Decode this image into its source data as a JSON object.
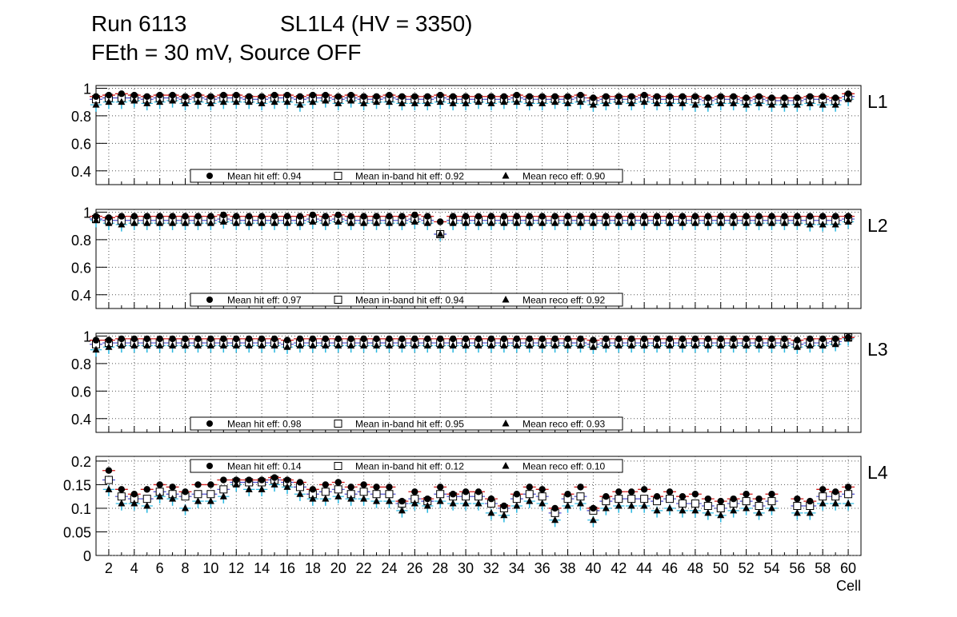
{
  "title": {
    "run": "Run 6113",
    "chamber": "SL1L4 (HV = 3350)",
    "conditions": "FEth = 30 mV, Source OFF"
  },
  "legend_labels": {
    "hit": "Mean hit  eff:",
    "inband": "Mean in-band hit eff:",
    "reco": "Mean reco eff:"
  },
  "x_axis": {
    "label": "Cell",
    "tick_labels": [
      "2",
      "4",
      "6",
      "8",
      "10",
      "12",
      "14",
      "16",
      "18",
      "20",
      "22",
      "24",
      "26",
      "28",
      "30",
      "32",
      "34",
      "36",
      "38",
      "40",
      "42",
      "44",
      "46",
      "48",
      "50",
      "52",
      "54",
      "56",
      "58",
      "60"
    ]
  },
  "chart_data": [
    {
      "type": "scatter",
      "layer": "L1",
      "xlabel": "",
      "ylabel": "",
      "xlim": [
        1,
        61
      ],
      "ylim": [
        0.3,
        1.02
      ],
      "yticks": [
        0.4,
        0.6,
        0.8,
        1
      ],
      "ytick_labels": [
        "0.4",
        "0.6",
        "0.8",
        "1"
      ],
      "grid": true,
      "legend_position": "bottom-center",
      "legend_values": {
        "hit": "0.94",
        "inband": "0.92",
        "reco": "0.90"
      },
      "x": [
        1,
        2,
        3,
        4,
        5,
        6,
        7,
        8,
        9,
        10,
        11,
        12,
        13,
        14,
        15,
        16,
        17,
        18,
        19,
        20,
        21,
        22,
        23,
        24,
        25,
        26,
        27,
        28,
        29,
        30,
        31,
        32,
        33,
        34,
        35,
        36,
        37,
        38,
        39,
        40,
        41,
        42,
        43,
        44,
        45,
        46,
        47,
        48,
        49,
        50,
        51,
        52,
        53,
        54,
        55,
        56,
        57,
        58,
        59,
        60
      ],
      "series": [
        {
          "name": "hit",
          "values": [
            0.94,
            0.95,
            0.96,
            0.95,
            0.94,
            0.95,
            0.95,
            0.94,
            0.95,
            0.94,
            0.95,
            0.95,
            0.94,
            0.94,
            0.95,
            0.95,
            0.94,
            0.95,
            0.95,
            0.94,
            0.95,
            0.94,
            0.94,
            0.95,
            0.94,
            0.94,
            0.94,
            0.95,
            0.94,
            0.94,
            0.94,
            0.94,
            0.94,
            0.95,
            0.94,
            0.94,
            0.94,
            0.94,
            0.95,
            0.93,
            0.94,
            0.94,
            0.94,
            0.95,
            0.94,
            0.94,
            0.94,
            0.94,
            0.93,
            0.94,
            0.94,
            0.93,
            0.94,
            0.93,
            0.93,
            0.93,
            0.94,
            0.94,
            0.93,
            0.96
          ]
        },
        {
          "name": "inband",
          "values": [
            0.92,
            0.93,
            0.93,
            0.93,
            0.92,
            0.93,
            0.93,
            0.92,
            0.93,
            0.92,
            0.93,
            0.93,
            0.92,
            0.92,
            0.93,
            0.93,
            0.92,
            0.93,
            0.93,
            0.92,
            0.93,
            0.92,
            0.92,
            0.93,
            0.92,
            0.92,
            0.92,
            0.93,
            0.92,
            0.92,
            0.92,
            0.92,
            0.92,
            0.93,
            0.92,
            0.92,
            0.92,
            0.92,
            0.93,
            0.91,
            0.92,
            0.92,
            0.92,
            0.93,
            0.92,
            0.92,
            0.92,
            0.92,
            0.91,
            0.92,
            0.92,
            0.91,
            0.92,
            0.91,
            0.91,
            0.91,
            0.92,
            0.92,
            0.91,
            0.94
          ]
        },
        {
          "name": "reco",
          "values": [
            0.88,
            0.9,
            0.9,
            0.91,
            0.89,
            0.9,
            0.91,
            0.89,
            0.9,
            0.89,
            0.9,
            0.9,
            0.9,
            0.89,
            0.9,
            0.9,
            0.88,
            0.9,
            0.91,
            0.89,
            0.91,
            0.89,
            0.9,
            0.9,
            0.89,
            0.89,
            0.89,
            0.9,
            0.89,
            0.89,
            0.9,
            0.89,
            0.9,
            0.9,
            0.89,
            0.89,
            0.9,
            0.89,
            0.9,
            0.88,
            0.89,
            0.9,
            0.89,
            0.9,
            0.89,
            0.89,
            0.89,
            0.88,
            0.88,
            0.89,
            0.89,
            0.88,
            0.89,
            0.88,
            0.88,
            0.88,
            0.89,
            0.88,
            0.88,
            0.92
          ]
        }
      ]
    },
    {
      "type": "scatter",
      "layer": "L2",
      "xlabel": "",
      "ylabel": "",
      "xlim": [
        1,
        61
      ],
      "ylim": [
        0.3,
        1.02
      ],
      "yticks": [
        0.4,
        0.6,
        0.8,
        1
      ],
      "ytick_labels": [
        "0.4",
        "0.6",
        "0.8",
        "1"
      ],
      "grid": true,
      "legend_position": "bottom-center",
      "legend_values": {
        "hit": "0.97",
        "inband": "0.94",
        "reco": "0.92"
      },
      "x": [
        1,
        2,
        3,
        4,
        5,
        6,
        7,
        8,
        9,
        10,
        11,
        12,
        13,
        14,
        15,
        16,
        17,
        18,
        19,
        20,
        21,
        22,
        23,
        24,
        25,
        26,
        27,
        28,
        29,
        30,
        31,
        32,
        33,
        34,
        35,
        36,
        37,
        38,
        39,
        40,
        41,
        42,
        43,
        44,
        45,
        46,
        47,
        48,
        49,
        50,
        51,
        52,
        53,
        54,
        55,
        56,
        57,
        58,
        59,
        60
      ],
      "series": [
        {
          "name": "hit",
          "values": [
            0.97,
            0.96,
            0.97,
            0.97,
            0.97,
            0.97,
            0.97,
            0.97,
            0.97,
            0.97,
            0.98,
            0.97,
            0.97,
            0.97,
            0.97,
            0.97,
            0.97,
            0.98,
            0.97,
            0.98,
            0.97,
            0.97,
            0.97,
            0.97,
            0.97,
            0.98,
            0.97,
            0.93,
            0.97,
            0.97,
            0.97,
            0.97,
            0.97,
            0.97,
            0.97,
            0.97,
            0.97,
            0.97,
            0.97,
            0.97,
            0.97,
            0.97,
            0.97,
            0.97,
            0.97,
            0.97,
            0.97,
            0.97,
            0.97,
            0.97,
            0.97,
            0.97,
            0.97,
            0.97,
            0.97,
            0.97,
            0.97,
            0.97,
            0.97,
            0.97
          ]
        },
        {
          "name": "inband",
          "values": [
            0.95,
            0.94,
            0.94,
            0.94,
            0.94,
            0.94,
            0.94,
            0.94,
            0.94,
            0.94,
            0.95,
            0.94,
            0.94,
            0.94,
            0.94,
            0.94,
            0.94,
            0.95,
            0.94,
            0.95,
            0.94,
            0.94,
            0.94,
            0.94,
            0.94,
            0.95,
            0.94,
            0.84,
            0.94,
            0.94,
            0.94,
            0.94,
            0.94,
            0.94,
            0.94,
            0.94,
            0.94,
            0.94,
            0.94,
            0.94,
            0.94,
            0.94,
            0.94,
            0.94,
            0.94,
            0.94,
            0.94,
            0.94,
            0.94,
            0.94,
            0.94,
            0.94,
            0.94,
            0.94,
            0.94,
            0.94,
            0.94,
            0.94,
            0.94,
            0.95
          ]
        },
        {
          "name": "reco",
          "values": [
            0.94,
            0.92,
            0.91,
            0.92,
            0.92,
            0.92,
            0.92,
            0.92,
            0.92,
            0.92,
            0.93,
            0.92,
            0.92,
            0.92,
            0.92,
            0.92,
            0.92,
            0.93,
            0.92,
            0.93,
            0.92,
            0.92,
            0.92,
            0.92,
            0.92,
            0.93,
            0.92,
            0.84,
            0.92,
            0.92,
            0.92,
            0.92,
            0.92,
            0.92,
            0.92,
            0.92,
            0.92,
            0.92,
            0.92,
            0.92,
            0.92,
            0.92,
            0.92,
            0.92,
            0.92,
            0.92,
            0.92,
            0.92,
            0.92,
            0.92,
            0.92,
            0.92,
            0.92,
            0.92,
            0.92,
            0.92,
            0.91,
            0.91,
            0.91,
            0.93
          ]
        }
      ]
    },
    {
      "type": "scatter",
      "layer": "L3",
      "xlabel": "",
      "ylabel": "",
      "xlim": [
        1,
        61
      ],
      "ylim": [
        0.3,
        1.02
      ],
      "yticks": [
        0.4,
        0.6,
        0.8,
        1
      ],
      "ytick_labels": [
        "0.4",
        "0.6",
        "0.8",
        "1"
      ],
      "grid": true,
      "legend_position": "bottom-center",
      "legend_values": {
        "hit": "0.98",
        "inband": "0.95",
        "reco": "0.93"
      },
      "x": [
        1,
        2,
        3,
        4,
        5,
        6,
        7,
        8,
        9,
        10,
        11,
        12,
        13,
        14,
        15,
        16,
        17,
        18,
        19,
        20,
        21,
        22,
        23,
        24,
        25,
        26,
        27,
        28,
        29,
        30,
        31,
        32,
        33,
        34,
        35,
        36,
        37,
        38,
        39,
        40,
        41,
        42,
        43,
        44,
        45,
        46,
        47,
        48,
        49,
        50,
        51,
        52,
        53,
        54,
        55,
        56,
        57,
        58,
        59,
        60
      ],
      "series": [
        {
          "name": "hit",
          "values": [
            0.97,
            0.97,
            0.98,
            0.98,
            0.98,
            0.98,
            0.98,
            0.98,
            0.98,
            0.98,
            0.98,
            0.98,
            0.98,
            0.98,
            0.98,
            0.97,
            0.98,
            0.98,
            0.98,
            0.98,
            0.98,
            0.98,
            0.98,
            0.98,
            0.98,
            0.98,
            0.98,
            0.98,
            0.98,
            0.98,
            0.98,
            0.98,
            0.98,
            0.98,
            0.98,
            0.98,
            0.98,
            0.98,
            0.98,
            0.97,
            0.98,
            0.98,
            0.98,
            0.98,
            0.98,
            0.98,
            0.98,
            0.98,
            0.98,
            0.98,
            0.98,
            0.98,
            0.98,
            0.98,
            0.98,
            0.97,
            0.98,
            0.98,
            0.98,
            0.99
          ]
        },
        {
          "name": "inband",
          "values": [
            0.94,
            0.95,
            0.95,
            0.95,
            0.95,
            0.95,
            0.95,
            0.95,
            0.95,
            0.95,
            0.95,
            0.95,
            0.95,
            0.95,
            0.95,
            0.94,
            0.95,
            0.95,
            0.95,
            0.95,
            0.95,
            0.95,
            0.95,
            0.95,
            0.95,
            0.95,
            0.95,
            0.95,
            0.95,
            0.95,
            0.95,
            0.95,
            0.95,
            0.95,
            0.95,
            0.95,
            0.95,
            0.95,
            0.95,
            0.94,
            0.95,
            0.95,
            0.95,
            0.95,
            0.95,
            0.95,
            0.95,
            0.95,
            0.95,
            0.95,
            0.95,
            0.95,
            0.95,
            0.95,
            0.95,
            0.94,
            0.95,
            0.95,
            0.96,
            0.99
          ]
        },
        {
          "name": "reco",
          "values": [
            0.9,
            0.92,
            0.93,
            0.93,
            0.93,
            0.93,
            0.93,
            0.93,
            0.93,
            0.93,
            0.93,
            0.93,
            0.93,
            0.93,
            0.93,
            0.92,
            0.93,
            0.93,
            0.93,
            0.93,
            0.93,
            0.93,
            0.93,
            0.93,
            0.93,
            0.93,
            0.93,
            0.93,
            0.93,
            0.93,
            0.93,
            0.93,
            0.93,
            0.93,
            0.93,
            0.93,
            0.93,
            0.93,
            0.93,
            0.92,
            0.93,
            0.93,
            0.93,
            0.93,
            0.93,
            0.93,
            0.93,
            0.93,
            0.93,
            0.93,
            0.93,
            0.93,
            0.93,
            0.93,
            0.93,
            0.92,
            0.93,
            0.93,
            0.94,
            0.98
          ]
        }
      ]
    },
    {
      "type": "scatter",
      "layer": "L4",
      "xlabel": "Cell",
      "ylabel": "",
      "xlim": [
        1,
        61
      ],
      "ylim": [
        0,
        0.21
      ],
      "yticks": [
        0,
        0.05,
        0.1,
        0.15,
        0.2
      ],
      "ytick_labels": [
        "0",
        "0.05",
        "0.1",
        "0.15",
        "0.2"
      ],
      "grid": true,
      "legend_position": "top-center",
      "legend_values": {
        "hit": "0.14",
        "inband": "0.12",
        "reco": "0.10"
      },
      "x": [
        2,
        3,
        4,
        5,
        6,
        7,
        8,
        9,
        10,
        11,
        12,
        13,
        14,
        15,
        16,
        17,
        18,
        19,
        20,
        21,
        22,
        23,
        24,
        25,
        26,
        27,
        28,
        29,
        30,
        31,
        32,
        33,
        34,
        35,
        36,
        37,
        38,
        39,
        40,
        41,
        42,
        43,
        44,
        45,
        46,
        47,
        48,
        49,
        50,
        51,
        52,
        53,
        54,
        56,
        57,
        58,
        59,
        60
      ],
      "series": [
        {
          "name": "hit",
          "values": [
            0.18,
            0.14,
            0.13,
            0.14,
            0.15,
            0.145,
            0.135,
            0.15,
            0.15,
            0.16,
            0.16,
            0.16,
            0.16,
            0.165,
            0.16,
            0.155,
            0.14,
            0.15,
            0.155,
            0.145,
            0.15,
            0.145,
            0.145,
            0.115,
            0.135,
            0.12,
            0.145,
            0.13,
            0.135,
            0.135,
            0.12,
            0.105,
            0.13,
            0.145,
            0.14,
            0.1,
            0.13,
            0.145,
            0.1,
            0.125,
            0.135,
            0.135,
            0.14,
            0.125,
            0.135,
            0.125,
            0.13,
            0.12,
            0.115,
            0.12,
            0.13,
            0.12,
            0.13,
            0.12,
            0.115,
            0.14,
            0.135,
            0.145
          ]
        },
        {
          "name": "inband",
          "values": [
            0.16,
            0.125,
            0.12,
            0.12,
            0.135,
            0.13,
            0.125,
            0.13,
            0.13,
            0.14,
            0.155,
            0.155,
            0.155,
            0.16,
            0.155,
            0.145,
            0.13,
            0.135,
            0.14,
            0.13,
            0.135,
            0.13,
            0.13,
            0.11,
            0.12,
            0.115,
            0.13,
            0.125,
            0.125,
            0.125,
            0.11,
            0.1,
            0.12,
            0.13,
            0.125,
            0.09,
            0.12,
            0.125,
            0.095,
            0.115,
            0.12,
            0.12,
            0.12,
            0.115,
            0.12,
            0.11,
            0.11,
            0.105,
            0.1,
            0.11,
            0.115,
            0.105,
            0.115,
            0.105,
            0.105,
            0.125,
            0.125,
            0.13
          ]
        },
        {
          "name": "reco",
          "values": [
            0.14,
            0.11,
            0.11,
            0.105,
            0.125,
            0.12,
            0.1,
            0.115,
            0.115,
            0.125,
            0.15,
            0.14,
            0.14,
            0.15,
            0.145,
            0.13,
            0.12,
            0.12,
            0.125,
            0.12,
            0.12,
            0.115,
            0.115,
            0.095,
            0.11,
            0.105,
            0.115,
            0.11,
            0.11,
            0.11,
            0.09,
            0.085,
            0.105,
            0.115,
            0.11,
            0.075,
            0.105,
            0.11,
            0.075,
            0.1,
            0.105,
            0.105,
            0.105,
            0.095,
            0.1,
            0.095,
            0.095,
            0.09,
            0.085,
            0.095,
            0.1,
            0.09,
            0.1,
            0.09,
            0.09,
            0.11,
            0.11,
            0.11
          ]
        }
      ]
    }
  ]
}
